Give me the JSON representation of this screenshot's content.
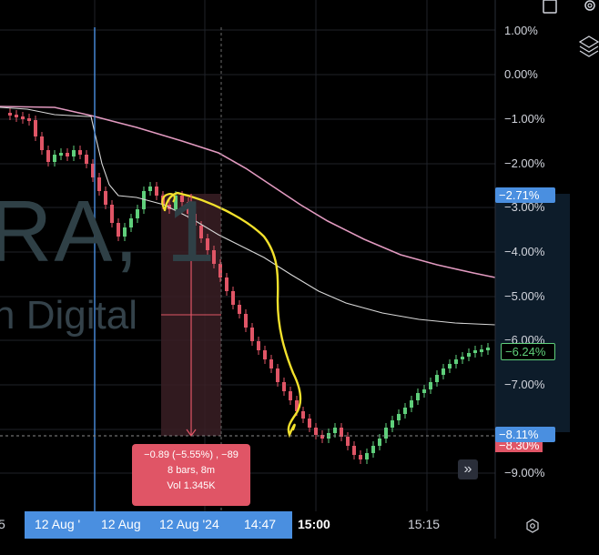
{
  "watermark": {
    "symbol": "RA, 1",
    "description": "n Digital"
  },
  "y_axis": {
    "labels": [
      "1.00%",
      "0.00%",
      "−1.00%",
      "−2.00%",
      "−3.00%",
      "−4.00%",
      "−5.00%",
      "−6.00%",
      "−7.00%",
      "−8.00%",
      "−9.00%"
    ]
  },
  "price_badges": {
    "top": "−2.71%",
    "middle": "−6.24%",
    "bottom": "−8.11%",
    "bottom_under": "−8.30%"
  },
  "measure": {
    "line1": "−0.89 (−5.55%) , −89",
    "line2": "8 bars, 8m",
    "line3": "Vol 1.345K"
  },
  "x_axis": {
    "edge_left": "5",
    "selected": [
      "12 Aug '",
      "12 Aug",
      "12 Aug '24",
      "14:47"
    ],
    "t1500": "15:00",
    "t1515": "15:15"
  },
  "icons": [
    "gear-icon",
    "layers-icon",
    "maximize-icon",
    "chevron-right-double-icon",
    "settings-hexagon-icon"
  ],
  "colors": {
    "up": "#5fcf7b",
    "down": "#e05566",
    "ema_pink": "#e29ac0",
    "ema_white": "#d9d9d9",
    "drawing": "#f3e12c",
    "crosshair": "#4a8fe0"
  }
}
